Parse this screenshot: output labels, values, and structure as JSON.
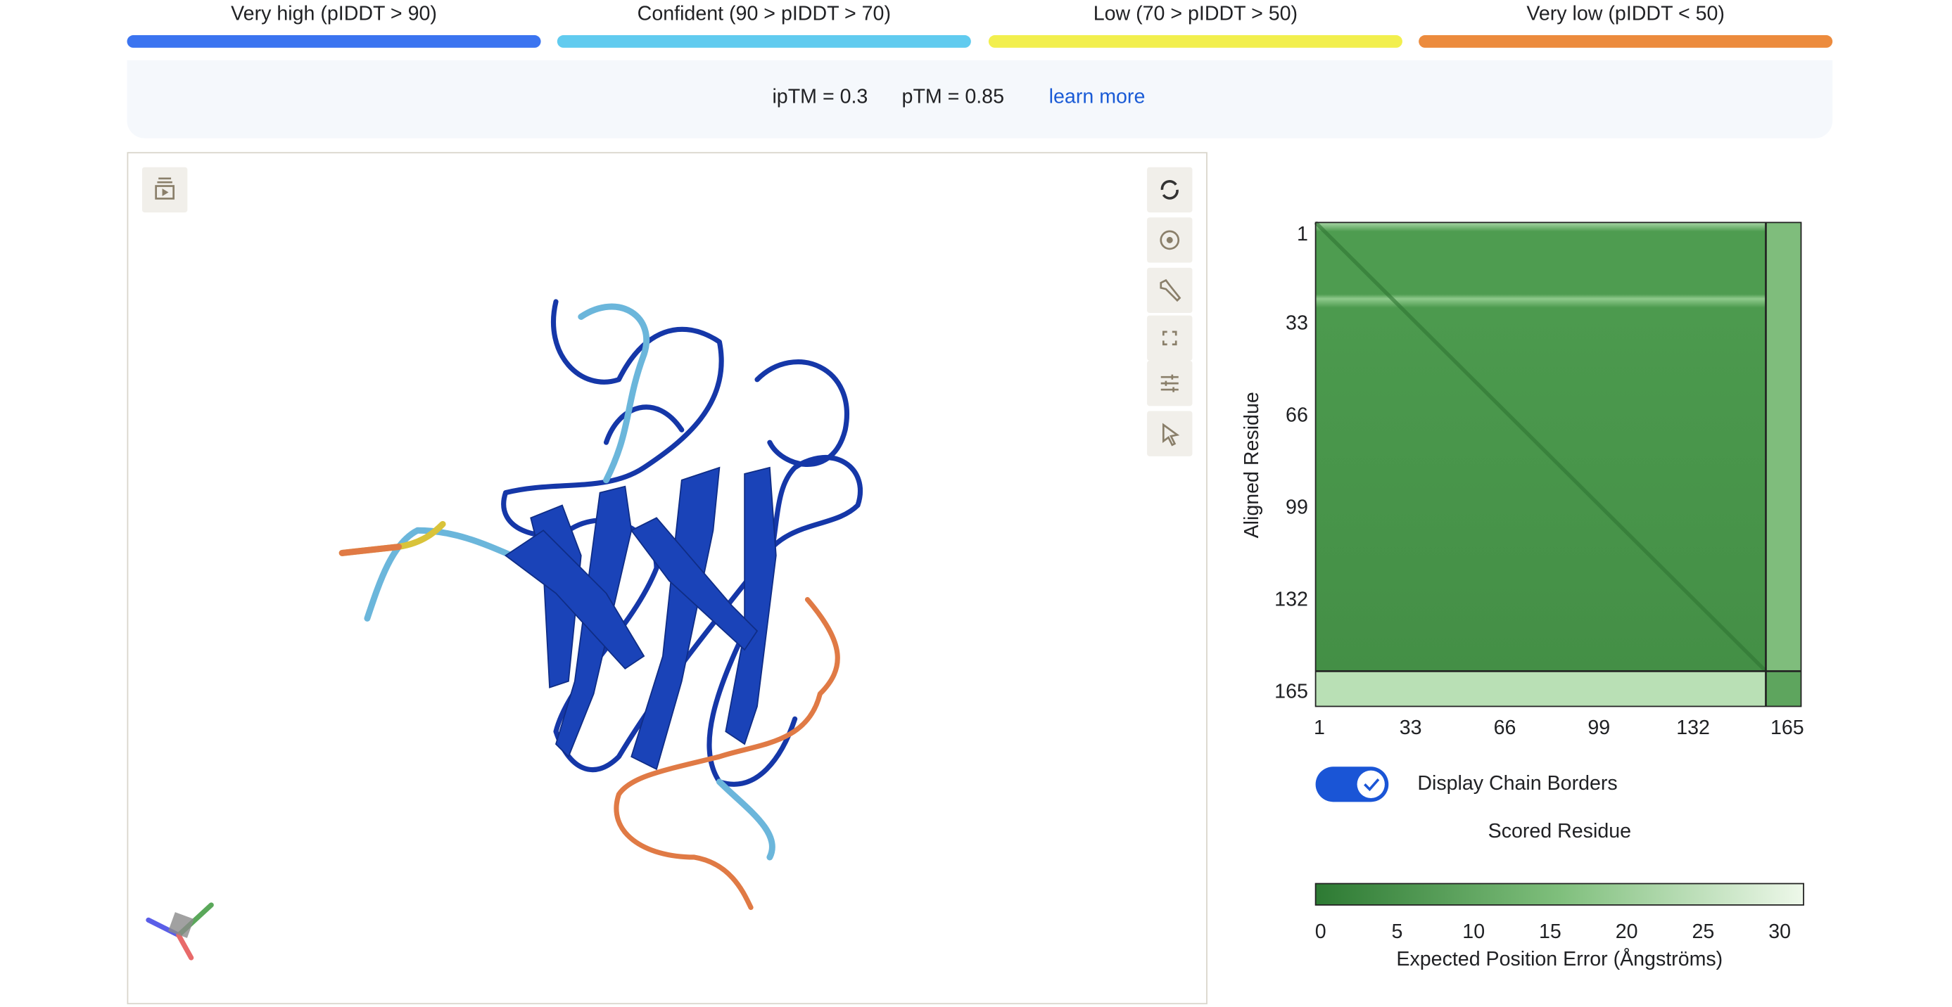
{
  "legend": [
    {
      "label": "Very high (pIDDT > 90)",
      "color": "#3b74f0"
    },
    {
      "label": "Confident (90 > pIDDT > 70)",
      "color": "#61cbef"
    },
    {
      "label": "Low (70 > pIDDT > 50)",
      "color": "#f2ef4e"
    },
    {
      "label": "Very low (pIDDT < 50)",
      "color": "#ec8b3d"
    }
  ],
  "metrics": {
    "iptm": "ipTM = 0.3",
    "ptm": "pTM = 0.85",
    "link": "learn more"
  },
  "pae_plot": {
    "y_label": "Aligned Residue",
    "x_label": "Scored Residue",
    "ticks": [
      1,
      33,
      66,
      99,
      132,
      165
    ],
    "toggle_label": "Display Chain Borders",
    "colorbar_ticks": [
      0,
      5,
      10,
      15,
      20,
      25,
      30
    ],
    "colorbar_label": "Expected Position Error (Ångströms)"
  }
}
